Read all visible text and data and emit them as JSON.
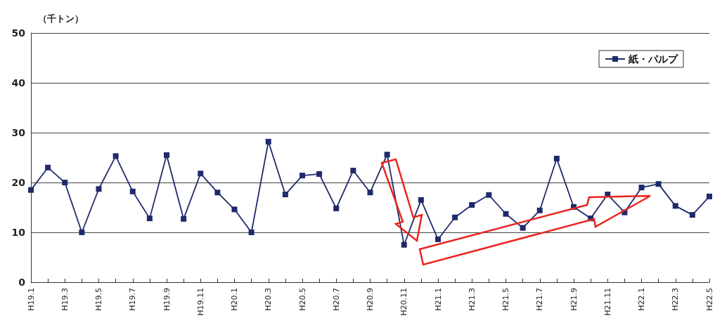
{
  "chart_data": {
    "type": "line",
    "ylabel": "（千トン）",
    "categories": [
      "H19.1",
      null,
      "H19.3",
      null,
      "H19.5",
      null,
      "H19.7",
      null,
      "H19.9",
      null,
      "H19.11",
      null,
      "H20.1",
      null,
      "H20.3",
      null,
      "H20.5",
      null,
      "H20.7",
      null,
      "H20.9",
      null,
      "H20.11",
      null,
      "H21.1",
      null,
      "H21.3",
      null,
      "H21.5",
      null,
      "H21.7",
      null,
      "H21.9",
      null,
      "H21.11",
      null,
      "H22.1",
      null,
      "H22.3",
      null,
      "H22.5"
    ],
    "series": [
      {
        "name": "紙・パルプ",
        "color": "#1f2a6b",
        "values": [
          18.5,
          23,
          20,
          10,
          18.7,
          25.3,
          18.2,
          12.8,
          25.5,
          12.7,
          21.8,
          18,
          14.6,
          10,
          28.2,
          17.6,
          21.4,
          21.7,
          14.8,
          22.4,
          18,
          25.6,
          7.5,
          16.5,
          8.6,
          13,
          15.5,
          17.5,
          13.7,
          10.9,
          14.4,
          24.8,
          15.1,
          12.8,
          17.6,
          14,
          19,
          19.7,
          15.3,
          13.5,
          17.2
        ]
      }
    ],
    "ylim": [
      0,
      50
    ],
    "yticks": [
      0,
      10,
      20,
      30,
      40,
      50
    ],
    "grid": "y",
    "legend": "top right",
    "marker": "square",
    "line_style": "solid"
  }
}
